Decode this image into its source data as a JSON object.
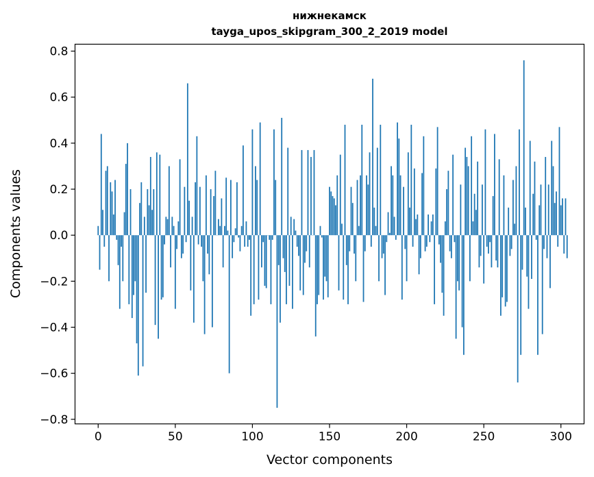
{
  "chart_data": {
    "type": "bar",
    "title": "нижнекамск",
    "subtitle": "tayga_upos_skipgram_300_2_2019 model",
    "xlabel": "Vector components",
    "ylabel": "Components values",
    "xlim": [
      -15,
      315
    ],
    "ylim": [
      -0.82,
      0.83
    ],
    "xticks": [
      0,
      50,
      100,
      150,
      200,
      250,
      300
    ],
    "xtick_labels": [
      "0",
      "50",
      "100",
      "150",
      "200",
      "250",
      "300"
    ],
    "yticks": [
      -0.8,
      -0.6,
      -0.4,
      -0.2,
      0.0,
      0.2,
      0.4,
      0.6,
      0.8
    ],
    "ytick_labels": [
      "−0.8",
      "−0.6",
      "−0.4",
      "−0.2",
      "0.0",
      "0.2",
      "0.4",
      "0.6",
      "0.8"
    ],
    "bar_color": "#1f77b4",
    "grid": false,
    "series": [
      {
        "name": "нижнекамск",
        "values": [
          0.04,
          -0.15,
          0.44,
          0.11,
          -0.05,
          0.28,
          0.3,
          -0.2,
          0.23,
          0.19,
          0.09,
          0.24,
          -0.02,
          -0.13,
          -0.32,
          -0.05,
          -0.2,
          0.1,
          0.31,
          0.4,
          -0.3,
          0.2,
          -0.36,
          -0.26,
          -0.2,
          -0.47,
          -0.61,
          0.14,
          0.23,
          -0.57,
          0.08,
          -0.25,
          0.2,
          0.13,
          0.34,
          0.11,
          0.2,
          -0.39,
          0.36,
          -0.45,
          0.35,
          -0.28,
          -0.27,
          -0.04,
          0.08,
          0.07,
          0.3,
          -0.14,
          0.08,
          0.04,
          -0.32,
          -0.06,
          0.06,
          0.33,
          -0.1,
          -0.08,
          0.21,
          -0.03,
          0.66,
          0.15,
          -0.24,
          0.08,
          -0.38,
          0.23,
          0.43,
          -0.04,
          0.21,
          -0.05,
          -0.2,
          -0.43,
          0.26,
          -0.08,
          -0.17,
          0.2,
          -0.4,
          0.17,
          0.28,
          0.0,
          0.07,
          0.04,
          0.16,
          -0.14,
          0.04,
          0.25,
          0.02,
          -0.6,
          0.24,
          -0.1,
          -0.03,
          0.03,
          0.23,
          -0.01,
          -0.07,
          0.04,
          0.39,
          -0.05,
          0.06,
          -0.05,
          -0.02,
          -0.35,
          0.46,
          -0.3,
          0.3,
          0.24,
          -0.28,
          0.49,
          -0.14,
          -0.03,
          -0.22,
          -0.23,
          0.0,
          -0.02,
          -0.3,
          -0.02,
          0.46,
          0.24,
          -0.75,
          -0.13,
          -0.38,
          0.51,
          -0.1,
          -0.16,
          -0.3,
          0.38,
          -0.22,
          0.08,
          -0.32,
          0.07,
          0.02,
          -0.05,
          -0.09,
          -0.24,
          0.37,
          -0.26,
          -0.12,
          -0.07,
          0.37,
          -0.14,
          0.34,
          0.0,
          0.37,
          -0.44,
          -0.3,
          -0.26,
          0.04,
          -0.01,
          -0.28,
          -0.18,
          -0.2,
          -0.27,
          0.21,
          0.19,
          0.17,
          0.16,
          0.13,
          0.26,
          -0.24,
          0.35,
          0.05,
          -0.28,
          0.48,
          -0.13,
          -0.3,
          -0.07,
          0.21,
          0.14,
          -0.08,
          -0.2,
          0.24,
          0.04,
          0.26,
          0.48,
          -0.29,
          -0.07,
          0.26,
          0.22,
          0.36,
          -0.05,
          0.68,
          0.12,
          0.04,
          0.38,
          -0.2,
          0.48,
          -0.1,
          -0.08,
          -0.26,
          -0.03,
          0.1,
          0.01,
          0.3,
          0.26,
          0.08,
          -0.02,
          0.49,
          0.42,
          0.26,
          -0.28,
          0.21,
          -0.06,
          -0.2,
          0.36,
          0.12,
          0.48,
          -0.05,
          0.29,
          0.07,
          0.09,
          -0.17,
          -0.1,
          0.27,
          0.43,
          -0.07,
          -0.05,
          0.09,
          -0.03,
          0.06,
          0.09,
          -0.3,
          0.29,
          0.47,
          -0.04,
          -0.12,
          -0.25,
          -0.35,
          0.06,
          0.2,
          0.28,
          -0.07,
          -0.1,
          0.35,
          -0.03,
          -0.45,
          -0.2,
          -0.24,
          0.22,
          -0.4,
          -0.52,
          0.38,
          0.34,
          0.3,
          -0.2,
          0.43,
          0.06,
          0.18,
          0.11,
          0.32,
          -0.14,
          -0.09,
          0.22,
          -0.21,
          0.46,
          -0.05,
          -0.08,
          -0.03,
          -0.14,
          0.17,
          0.44,
          -0.11,
          -0.14,
          0.33,
          -0.35,
          -0.27,
          0.26,
          -0.31,
          -0.29,
          0.12,
          -0.09,
          -0.06,
          0.24,
          0.05,
          0.3,
          -0.64,
          0.46,
          -0.52,
          -0.15,
          0.76,
          0.12,
          -0.18,
          -0.32,
          0.41,
          -0.19,
          0.18,
          0.32,
          -0.02,
          -0.52,
          0.13,
          0.22,
          -0.43,
          -0.06,
          0.34,
          -0.1,
          0.22,
          -0.23,
          0.41,
          0.3,
          0.14,
          0.19,
          -0.05,
          0.47,
          0.13,
          0.16,
          -0.08,
          0.16,
          -0.1
        ]
      }
    ]
  }
}
